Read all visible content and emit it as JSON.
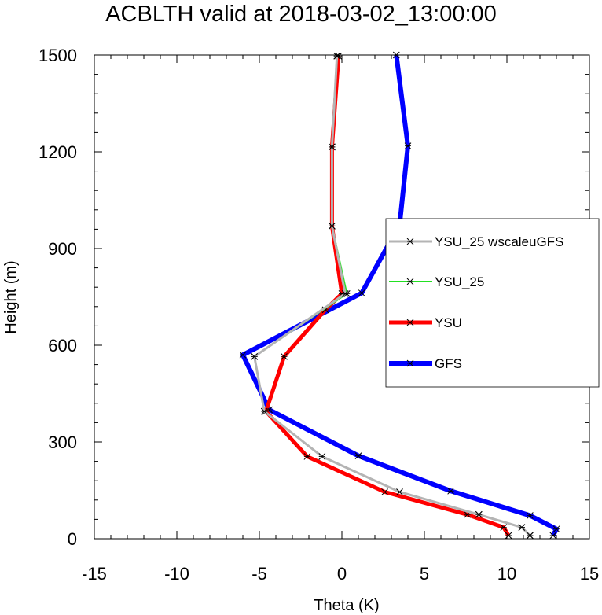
{
  "chart_data": {
    "type": "line",
    "title": "ACBLTH valid at 2018-03-02_13:00:00",
    "xlabel": "Theta (K)",
    "ylabel": "Height (m)",
    "xlim": [
      -15,
      15
    ],
    "ylim": [
      0,
      1500
    ],
    "xticks": [
      -15,
      -10,
      -5,
      0,
      5,
      10,
      15
    ],
    "yticks": [
      0,
      300,
      600,
      900,
      1200,
      1500
    ],
    "legend_position": "right",
    "series": [
      {
        "name": "YSU_25 wscaleuGFS",
        "color": "#b4b4b4",
        "width": 3,
        "points": [
          [
            11.4,
            10
          ],
          [
            10.9,
            35
          ],
          [
            8.3,
            75
          ],
          [
            3.5,
            145
          ],
          [
            -1.2,
            255
          ],
          [
            -4.7,
            395
          ],
          [
            -5.3,
            565
          ],
          [
            0.2,
            760
          ],
          [
            -0.6,
            970
          ],
          [
            -0.6,
            1215
          ],
          [
            -0.3,
            1497
          ]
        ]
      },
      {
        "name": "YSU_25",
        "color": "#22e022",
        "width": 2,
        "points": [
          [
            11.4,
            10
          ],
          [
            10.9,
            35
          ],
          [
            8.3,
            75
          ],
          [
            3.5,
            145
          ],
          [
            -1.2,
            255
          ],
          [
            -4.7,
            395
          ],
          [
            -5.3,
            565
          ],
          [
            0.3,
            760
          ],
          [
            -0.6,
            970
          ],
          [
            -0.6,
            1215
          ],
          [
            -0.3,
            1497
          ]
        ]
      },
      {
        "name": "YSU",
        "color": "#ff0000",
        "width": 5,
        "points": [
          [
            10.1,
            10
          ],
          [
            9.8,
            35
          ],
          [
            7.6,
            75
          ],
          [
            2.6,
            145
          ],
          [
            -2.1,
            255
          ],
          [
            -4.6,
            395
          ],
          [
            -3.5,
            565
          ],
          [
            -1.0,
            710
          ],
          [
            0.0,
            760
          ],
          [
            -0.6,
            970
          ],
          [
            -0.6,
            1215
          ],
          [
            -0.2,
            1497
          ]
        ]
      },
      {
        "name": "GFS",
        "color": "#0000ff",
        "width": 6,
        "points": [
          [
            12.8,
            10
          ],
          [
            13.0,
            30
          ],
          [
            11.4,
            72
          ],
          [
            6.6,
            148
          ],
          [
            1.0,
            257
          ],
          [
            -4.4,
            400
          ],
          [
            -6.0,
            570
          ],
          [
            1.2,
            762
          ],
          [
            3.5,
            975
          ],
          [
            4.0,
            1218
          ],
          [
            3.3,
            1500
          ]
        ]
      }
    ]
  }
}
